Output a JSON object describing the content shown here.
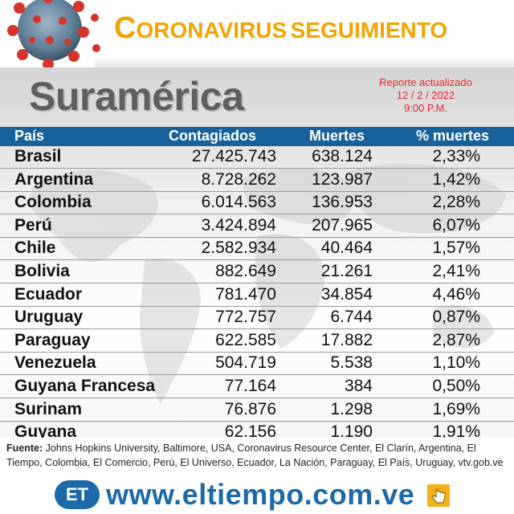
{
  "header": {
    "title_initial": "C",
    "title_rest": "ORONAVIRUS",
    "title_suffix": "SEGUIMIENTO"
  },
  "region": "Suramérica",
  "report": {
    "line1": "Reporte actualizado",
    "date": "12 / 2 / 2022",
    "time": "9:00 P.M."
  },
  "table": {
    "columns": [
      "País",
      "Contagiados",
      "Muertes",
      "% muertes"
    ],
    "rows": [
      [
        "Brasil",
        "27.425.743",
        "638.124",
        "2,33%"
      ],
      [
        "Argentina",
        "8.728.262",
        "123.987",
        "1,42%"
      ],
      [
        "Colombia",
        "6.014.563",
        "136.953",
        "2,28%"
      ],
      [
        "Perú",
        "3.424.894",
        "207.965",
        "6,07%"
      ],
      [
        "Chile",
        "2.582.934",
        "40.464",
        "1,57%"
      ],
      [
        "Bolivia",
        "882.649",
        "21.261",
        "2,41%"
      ],
      [
        "Ecuador",
        "781.470",
        "34.854",
        "4,46%"
      ],
      [
        "Uruguay",
        "772.757",
        "6.744",
        "0,87%"
      ],
      [
        "Paraguay",
        "622.585",
        "17.882",
        "2,87%"
      ],
      [
        "Venezuela",
        "504.719",
        "5.538",
        "1,10%"
      ],
      [
        "Guyana Francesa",
        "77.164",
        "384",
        "0,50%"
      ],
      [
        "Surinam",
        "76.876",
        "1.298",
        "1,69%"
      ],
      [
        "Guyana",
        "62.156",
        "1.190",
        "1,91%"
      ]
    ]
  },
  "footer": {
    "source_label": "Fuente:",
    "source_text": "Johns Hopkins University, Baltimore, USA, Coronavirus Resource Center,  El Clarín, Argentina, El Tiempo, Colombia, El Comercio, Perú, El Universo, Ecuador, La Nación, Paraguay, El País, Uruguay, vtv.gob.ve",
    "logo_text": "ET",
    "url": "www.eltiempo.com.ve"
  },
  "colors": {
    "accent": "#f3a400",
    "header_bar": "#18619a",
    "report_red": "#e8242a",
    "brand_blue": "#1c6aa8"
  },
  "icons": [
    "coronavirus-icon",
    "et-logo-icon",
    "click-hand-icon"
  ]
}
